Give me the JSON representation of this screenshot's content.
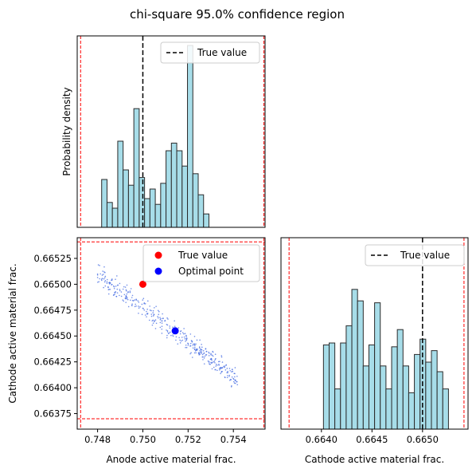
{
  "chart_data": {
    "title": "chi-square 95.0% confidence region",
    "type": "corner",
    "colors": {
      "hist_fill": "#a7dde9",
      "hist_edge": "#2b2b2b",
      "bounds": "#ff0000",
      "true_value": "#ff0000",
      "optimal": "#0000ff",
      "samples": "#4169e1"
    },
    "panels": [
      {
        "id": "anode-hist",
        "type": "histogram",
        "xlim": [
          0.7471,
          0.7554
        ],
        "ylabel": "Probability density",
        "bin_edges_start": 0.74818,
        "bin_width": 0.000237,
        "heights": [
          0.25,
          0.13,
          0.1,
          0.45,
          0.3,
          0.22,
          0.62,
          0.26,
          0.15,
          0.2,
          0.12,
          0.23,
          0.4,
          0.44,
          0.4,
          0.32,
          0.95,
          0.28,
          0.17,
          0.07
        ],
        "bounds": [
          0.74725,
          0.75535
        ],
        "true_value": 0.75,
        "legend": [
          "True value"
        ]
      },
      {
        "id": "scatter",
        "type": "scatter",
        "xlim": [
          0.7471,
          0.7554
        ],
        "ylim": [
          0.6636,
          0.66545
        ],
        "xlabel": "Anode active material frac.",
        "ylabel": "Cathode active material frac.",
        "xticks": [
          "0.748",
          "0.750",
          "0.752",
          "0.754"
        ],
        "yticks": [
          "0.66525",
          "0.66500",
          "0.66475",
          "0.66450",
          "0.66425",
          "0.66400",
          "0.66375"
        ],
        "xtick_values": [
          0.748,
          0.75,
          0.752,
          0.754
        ],
        "ytick_values": [
          0.66525,
          0.665,
          0.66475,
          0.6645,
          0.66425,
          0.664,
          0.66375
        ],
        "bounds_x": [
          0.74725,
          0.75535
        ],
        "bounds_y": [
          0.6637,
          0.66541
        ],
        "true_point": [
          0.75,
          0.665
        ],
        "optimal_point": [
          0.75143,
          0.66455
        ],
        "cloud": {
          "center": [
            0.75115,
            0.66458
          ],
          "slope": -0.000167,
          "x_range": [
            0.748,
            0.7542
          ],
          "spread": 9e-05,
          "count": 400
        },
        "legend": [
          "True value",
          "Optimal point"
        ]
      },
      {
        "id": "cathode-hist",
        "type": "histogram",
        "xlim": [
          0.6636,
          0.66545
        ],
        "xlabel": "Cathode active material frac.",
        "xticks": [
          "0.6640",
          "0.6645",
          "0.6650"
        ],
        "xtick_values": [
          0.664,
          0.6645,
          0.665
        ],
        "bin_edges_start": 0.66402,
        "bin_width": 5.62e-05,
        "heights": [
          0.44,
          0.45,
          0.21,
          0.45,
          0.54,
          0.73,
          0.67,
          0.33,
          0.44,
          0.66,
          0.33,
          0.21,
          0.43,
          0.52,
          0.33,
          0.19,
          0.39,
          0.47,
          0.35,
          0.41,
          0.3,
          0.21
        ],
        "bounds": [
          0.66368,
          0.66541
        ],
        "true_value": 0.665,
        "legend": [
          "True value"
        ]
      }
    ]
  }
}
